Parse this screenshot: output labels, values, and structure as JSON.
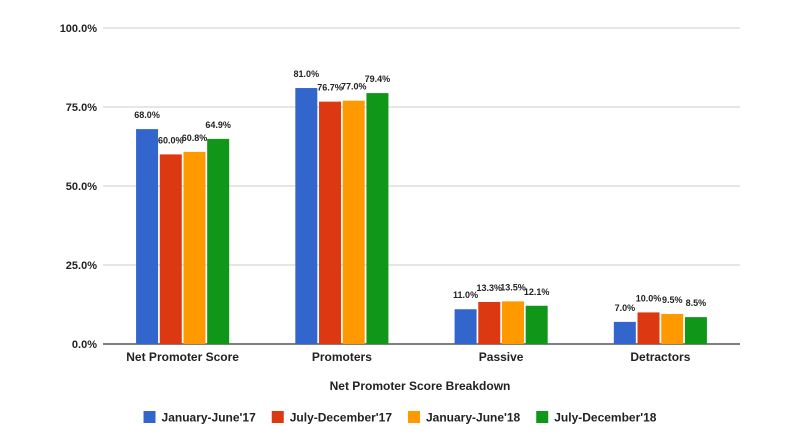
{
  "chart_data": {
    "type": "bar",
    "title": "",
    "xlabel": "Net Promoter Score Breakdown",
    "ylabel": "",
    "ylim": [
      0,
      100
    ],
    "yticks": [
      "0.0%",
      "25.0%",
      "50.0%",
      "75.0%",
      "100.0%"
    ],
    "ytick_values": [
      0,
      25,
      50,
      75,
      100
    ],
    "categories": [
      "Net Promoter Score",
      "Promoters",
      "Passive",
      "Detractors"
    ],
    "series": [
      {
        "name": "January-June'17",
        "color": "#3366cc",
        "values": [
          68.0,
          81.0,
          11.0,
          7.0
        ],
        "labels": [
          "68.0%",
          "81.0%",
          "11.0%",
          "7.0%"
        ]
      },
      {
        "name": "July-December'17",
        "color": "#dc3912",
        "values": [
          60.0,
          76.7,
          13.3,
          10.0
        ],
        "labels": [
          "60.0%",
          "76.7%",
          "13.3%",
          "10.0%"
        ]
      },
      {
        "name": "January-June'18",
        "color": "#ff9900",
        "values": [
          60.8,
          77.0,
          13.5,
          9.5
        ],
        "labels": [
          "60.8%",
          "77.0%",
          "13.5%",
          "9.5%"
        ]
      },
      {
        "name": "July-December'18",
        "color": "#109618",
        "values": [
          64.9,
          79.4,
          12.1,
          8.5
        ],
        "labels": [
          "64.9%",
          "79.4%",
          "12.1%",
          "8.5%"
        ]
      }
    ],
    "grid": true,
    "legend_position": "bottom"
  }
}
